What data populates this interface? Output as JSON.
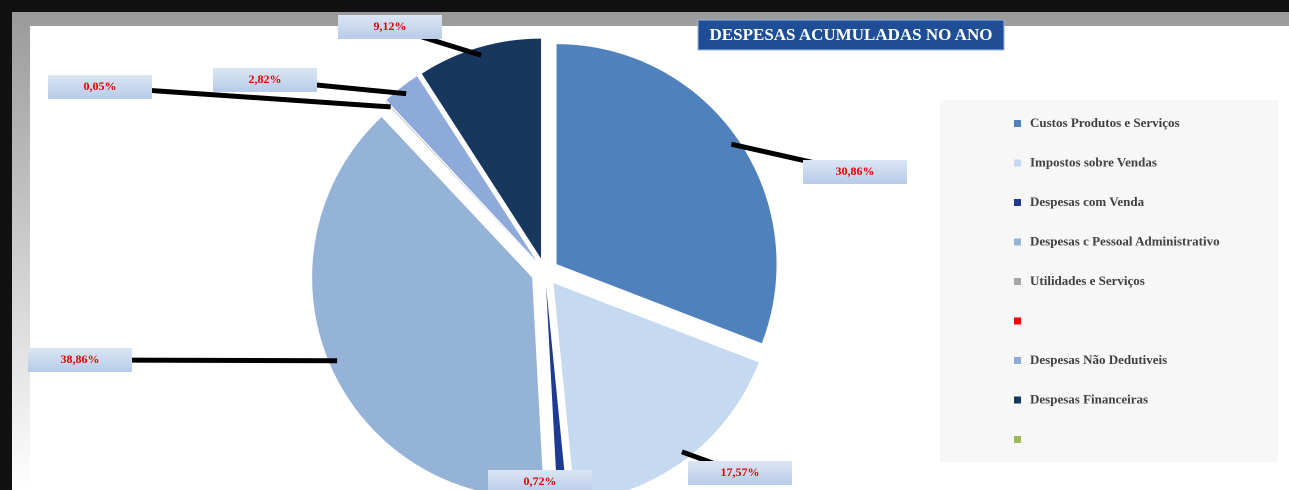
{
  "chart_data": {
    "type": "pie",
    "title": "DESPESAS ACUMULADAS NO ANO",
    "categories": [
      "Custos Produtos e Serviços",
      "Impostos sobre Vendas",
      "Despesas com Venda",
      "Despesas c Pessoal Administrativo",
      "Utilidades e Serviços",
      null,
      "Despesas Não Dedutiveis",
      "Despesas Financeiras",
      null
    ],
    "values": [
      30.86,
      17.57,
      0.72,
      38.86,
      0.05,
      0,
      2.82,
      9.12,
      0
    ],
    "value_labels": [
      "30,86%",
      "17,57%",
      "0,72%",
      "38,86%",
      "0,05%",
      null,
      "2,82%",
      "9,12%",
      null
    ],
    "colors": [
      "#4f81bd",
      "#c5d9f1",
      "#1f3a93",
      "#95b3d7",
      "#a6a6a6",
      "#ff0000",
      "#8eaadb",
      "#17375e",
      "#9bbb59"
    ],
    "legend": "right"
  }
}
